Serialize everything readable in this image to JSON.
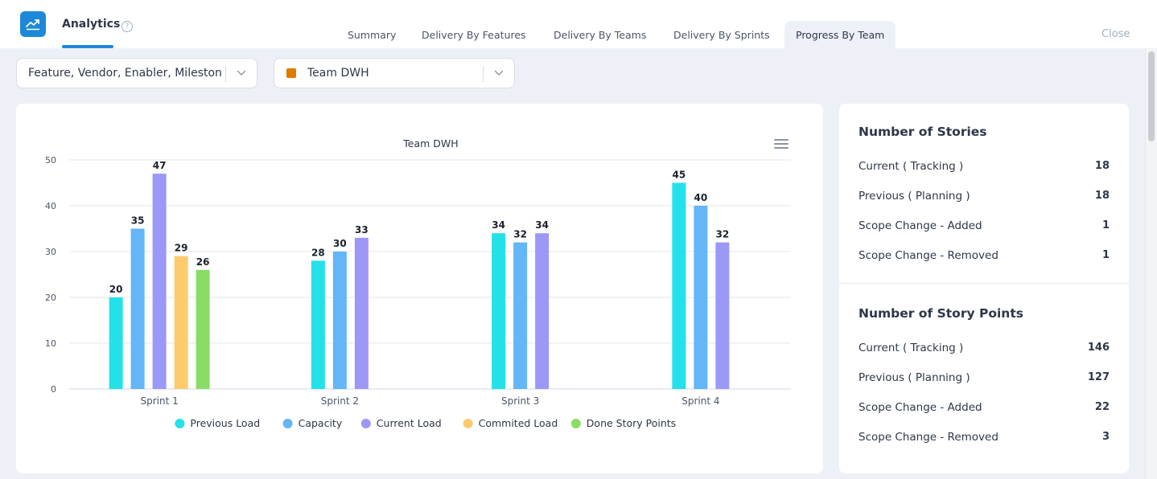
{
  "header": {
    "app_title": "Analytics",
    "help_glyph": "?",
    "close_label": "Close",
    "tabs": [
      {
        "label": "Summary"
      },
      {
        "label": "Delivery By Features"
      },
      {
        "label": "Delivery By Teams"
      },
      {
        "label": "Delivery By Sprints"
      },
      {
        "label": "Progress By Team",
        "active": true
      }
    ]
  },
  "filters": {
    "type_select": "Feature, Vendor, Enabler, Mileston...",
    "team_select": "Team DWH",
    "team_color": "#e07b00"
  },
  "chart_data": {
    "type": "bar",
    "title": "Team DWH",
    "xlabel": "",
    "ylabel": "",
    "ylim": [
      0,
      50
    ],
    "yticks": [
      0,
      10,
      20,
      30,
      40,
      50
    ],
    "grid": true,
    "legend_position": "bottom",
    "categories": [
      "Sprint 1",
      "Sprint 2",
      "Sprint 3",
      "Sprint 4"
    ],
    "series": [
      {
        "name": "Previous Load",
        "color": "#24e1e9",
        "values": [
          20,
          28,
          34,
          45
        ]
      },
      {
        "name": "Capacity",
        "color": "#63b6f7",
        "values": [
          35,
          30,
          32,
          40
        ]
      },
      {
        "name": "Current Load",
        "color": "#9c98f7",
        "values": [
          47,
          33,
          34,
          32
        ]
      },
      {
        "name": "Commited Load",
        "color": "#fdcb6e",
        "values": [
          29,
          null,
          null,
          null
        ]
      },
      {
        "name": "Done Story Points",
        "color": "#89dd66",
        "values": [
          26,
          null,
          null,
          null
        ]
      }
    ]
  },
  "stories": {
    "title": "Number of Stories",
    "rows": [
      {
        "label": "Current ( Tracking )",
        "value": "18"
      },
      {
        "label": "Previous ( Planning )",
        "value": "18"
      },
      {
        "label": "Scope Change - Added",
        "value": "1"
      },
      {
        "label": "Scope Change - Removed",
        "value": "1"
      }
    ]
  },
  "story_points": {
    "title": "Number of Story Points",
    "rows": [
      {
        "label": "Current ( Tracking )",
        "value": "146"
      },
      {
        "label": "Previous ( Planning )",
        "value": "127"
      },
      {
        "label": "Scope Change - Added",
        "value": "22"
      },
      {
        "label": "Scope Change - Removed",
        "value": "3"
      }
    ]
  },
  "colors": {
    "accent": "#1e88d8",
    "background": "#edf1f7"
  },
  "icons": {
    "app": "trend-line-icon",
    "help": "help-circle-icon",
    "chevron": "chevron-down-icon",
    "chart_menu": "hamburger-menu-icon"
  }
}
